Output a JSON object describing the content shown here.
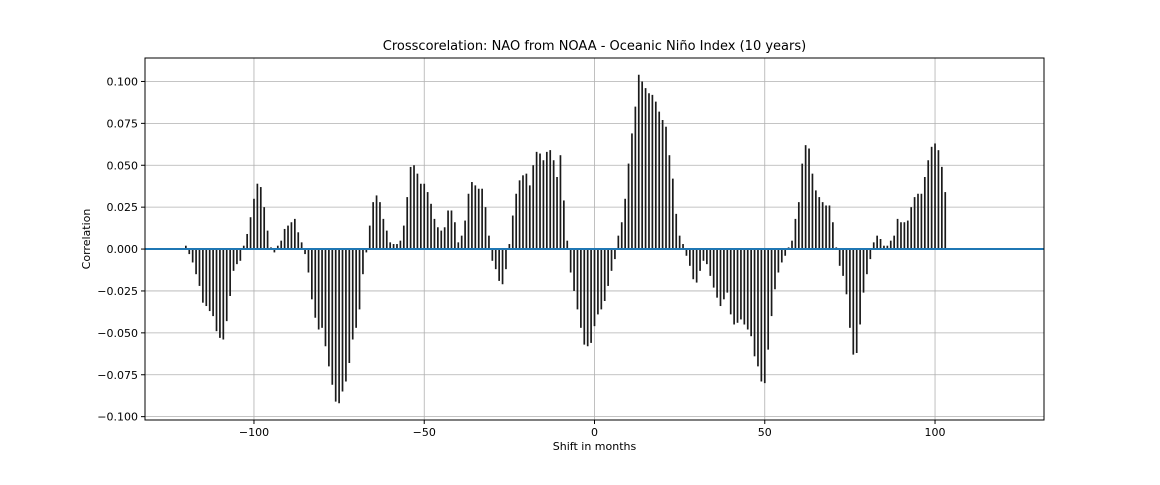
{
  "chart_data": {
    "type": "bar",
    "title": "Crosscorelation: NAO from NOAA - Oceanic Niño Index (10 years)",
    "xlabel": "Shift in months",
    "ylabel": "Correlation",
    "xlim": [
      -132,
      132
    ],
    "ylim": [
      -0.102,
      0.114
    ],
    "xticks": [
      -100,
      -50,
      0,
      50,
      100
    ],
    "xtick_labels": [
      "−100",
      "−50",
      "0",
      "50",
      "100"
    ],
    "yticks": [
      -0.1,
      -0.075,
      -0.05,
      -0.025,
      0.0,
      0.025,
      0.05,
      0.075,
      0.1
    ],
    "ytick_labels": [
      "−0.100",
      "−0.075",
      "−0.050",
      "−0.025",
      "0.000",
      "0.025",
      "0.050",
      "0.075",
      "0.100"
    ],
    "grid": true,
    "zero_line": true,
    "x_start": -120,
    "x_step": 1,
    "values": [
      0.002,
      -0.003,
      -0.008,
      -0.015,
      -0.022,
      -0.032,
      -0.034,
      -0.037,
      -0.04,
      -0.049,
      -0.053,
      -0.054,
      -0.043,
      -0.028,
      -0.013,
      -0.009,
      -0.007,
      0.002,
      0.009,
      0.019,
      0.03,
      0.039,
      0.037,
      0.025,
      0.011,
      0.001,
      -0.002,
      0.002,
      0.005,
      0.012,
      0.014,
      0.016,
      0.018,
      0.01,
      0.004,
      -0.003,
      -0.014,
      -0.03,
      -0.041,
      -0.048,
      -0.047,
      -0.058,
      -0.07,
      -0.081,
      -0.091,
      -0.092,
      -0.085,
      -0.079,
      -0.068,
      -0.054,
      -0.047,
      -0.036,
      -0.015,
      -0.002,
      0.014,
      0.028,
      0.032,
      0.028,
      0.018,
      0.011,
      0.004,
      0.003,
      0.003,
      0.005,
      0.014,
      0.031,
      0.049,
      0.05,
      0.045,
      0.039,
      0.039,
      0.034,
      0.027,
      0.018,
      0.013,
      0.011,
      0.013,
      0.023,
      0.023,
      0.016,
      0.004,
      0.008,
      0.017,
      0.033,
      0.04,
      0.038,
      0.036,
      0.036,
      0.025,
      0.008,
      -0.007,
      -0.012,
      -0.019,
      -0.021,
      -0.012,
      0.003,
      0.02,
      0.033,
      0.041,
      0.044,
      0.045,
      0.038,
      0.05,
      0.058,
      0.057,
      0.053,
      0.058,
      0.059,
      0.053,
      0.043,
      0.056,
      0.029,
      0.005,
      -0.014,
      -0.025,
      -0.036,
      -0.047,
      -0.057,
      -0.058,
      -0.056,
      -0.046,
      -0.039,
      -0.036,
      -0.031,
      -0.022,
      -0.013,
      -0.006,
      0.008,
      0.016,
      0.03,
      0.051,
      0.069,
      0.085,
      0.104,
      0.1,
      0.096,
      0.093,
      0.092,
      0.088,
      0.082,
      0.077,
      0.073,
      0.056,
      0.042,
      0.021,
      0.008,
      0.003,
      -0.004,
      -0.01,
      -0.018,
      -0.02,
      -0.013,
      -0.007,
      -0.009,
      -0.016,
      -0.023,
      -0.029,
      -0.034,
      -0.03,
      -0.026,
      -0.039,
      -0.045,
      -0.044,
      -0.042,
      -0.045,
      -0.048,
      -0.052,
      -0.064,
      -0.07,
      -0.079,
      -0.08,
      -0.06,
      -0.04,
      -0.024,
      -0.014,
      -0.008,
      -0.004,
      0.001,
      0.005,
      0.018,
      0.028,
      0.051,
      0.062,
      0.06,
      0.045,
      0.035,
      0.031,
      0.028,
      0.026,
      0.026,
      0.016,
      0.001,
      -0.01,
      -0.016,
      -0.027,
      -0.047,
      -0.063,
      -0.062,
      -0.045,
      -0.026,
      -0.015,
      -0.006,
      0.004,
      0.008,
      0.006,
      0.002,
      0.002,
      0.005,
      0.008,
      0.018,
      0.016,
      0.016,
      0.017,
      0.025,
      0.031,
      0.033,
      0.033,
      0.043,
      0.053,
      0.061,
      0.063,
      0.059,
      0.049,
      0.034
    ],
    "colors": {
      "bar": "#1a1a1a",
      "zero_line": "#1f77b4",
      "grid": "#b0b0b0",
      "axes": "#000000"
    }
  }
}
